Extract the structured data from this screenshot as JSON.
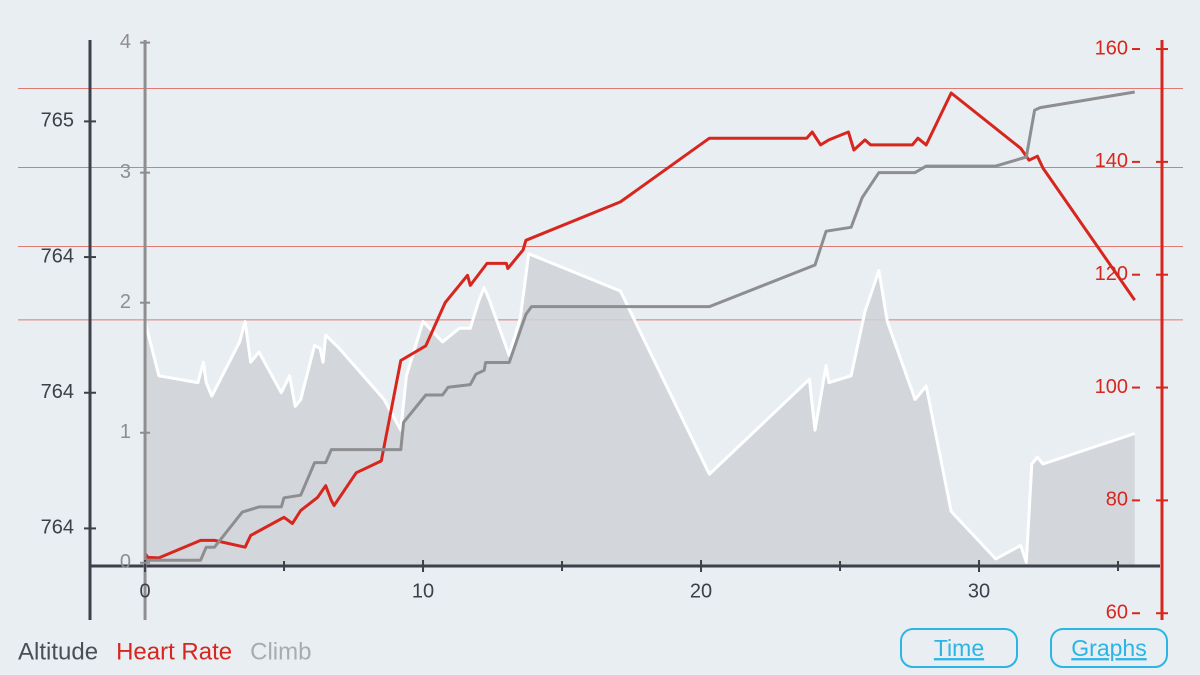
{
  "chart_data": {
    "type": "line",
    "xlim": [
      -1.98,
      36.51
    ],
    "xticks": [
      0,
      10,
      20,
      30
    ],
    "x_minor_ticks": [
      5,
      15,
      25,
      35
    ],
    "ylim": [
      763.33,
      765.04
    ],
    "yticks": [
      {
        "value": 764.8,
        "label": "765"
      },
      {
        "value": 764.4,
        "label": "764"
      },
      {
        "value": 764.0,
        "label": "764"
      },
      {
        "value": 763.6,
        "label": "764"
      }
    ],
    "y3lim": [
      -0.44,
      4.02
    ],
    "y3ticks": [
      0,
      1,
      2,
      3,
      4
    ],
    "y2lim": [
      58.8,
      161.6
    ],
    "y2ticks": [
      60,
      80,
      100,
      120,
      140,
      160
    ],
    "hr_zones": [
      153,
      139,
      125,
      112
    ],
    "zone_color": "#e07a74",
    "series": [
      {
        "name": "Altitude",
        "axis": "y",
        "color": "#ffffff",
        "legend_color": "#4a4f57",
        "area": true,
        "area_color": "#cfd2d8",
        "x": [
          0,
          0.5,
          1.9,
          2.1,
          2.2,
          2.4,
          3.4,
          3.6,
          3.8,
          4.1,
          4.9,
          5.2,
          5.4,
          5.6,
          6.1,
          6.3,
          6.4,
          6.5,
          7.0,
          8.6,
          9.2,
          9.4,
          10.0,
          10.7,
          11.3,
          11.7,
          12.0,
          12.2,
          12.4,
          13.1,
          13.5,
          13.8,
          17.1,
          20.3,
          23.9,
          24.1,
          24.5,
          24.6,
          25.4,
          25.9,
          26.4,
          26.7,
          27.7,
          28.1,
          29.0,
          30.6,
          31.5,
          31.7,
          31.9,
          32.1,
          32.3,
          35.6
        ],
        "values": [
          764.21,
          764.05,
          764.03,
          764.09,
          764.03,
          763.99,
          764.15,
          764.21,
          764.09,
          764.12,
          764.0,
          764.05,
          763.96,
          763.98,
          764.14,
          764.13,
          764.09,
          764.17,
          764.13,
          763.98,
          763.89,
          764.05,
          764.21,
          764.15,
          764.19,
          764.19,
          764.27,
          764.31,
          764.27,
          764.11,
          764.22,
          764.41,
          764.3,
          763.76,
          764.04,
          763.89,
          764.08,
          764.03,
          764.05,
          764.24,
          764.36,
          764.21,
          763.98,
          764.02,
          763.65,
          763.51,
          763.55,
          763.5,
          763.79,
          763.81,
          763.79,
          763.88
        ]
      },
      {
        "name": "Heart Rate",
        "axis": "y2",
        "color": "#d7261e",
        "legend_color": "#d7261e",
        "x": [
          0,
          0.1,
          0.5,
          2.0,
          2.5,
          3.6,
          3.8,
          5.0,
          5.3,
          5.6,
          6.2,
          6.5,
          6.7,
          6.8,
          7.6,
          7.9,
          8.5,
          9.2,
          10.1,
          10.8,
          11.6,
          11.7,
          12.3,
          13.0,
          13.05,
          13.6,
          13.7,
          17.1,
          20.3,
          23.8,
          24.0,
          24.3,
          24.6,
          25.3,
          25.5,
          25.9,
          26.1,
          27.6,
          27.8,
          28.1,
          29.0,
          31.5,
          31.8,
          32.1,
          32.3,
          35.6
        ],
        "values": [
          70.6,
          69.9,
          69.8,
          72.9,
          72.9,
          71.7,
          73.8,
          77.0,
          75.9,
          78.2,
          80.5,
          82.6,
          80.0,
          79.1,
          84.9,
          85.6,
          87.0,
          104.8,
          107.4,
          115.1,
          119.9,
          118.1,
          122.0,
          122.0,
          121.1,
          124.4,
          126.1,
          132.9,
          144.2,
          144.2,
          145.3,
          143.0,
          143.9,
          145.3,
          142.1,
          143.9,
          143.0,
          143.0,
          144.2,
          143.0,
          152.2,
          142.4,
          140.3,
          141.0,
          138.9,
          115.5
        ]
      },
      {
        "name": "Climb",
        "axis": "y3",
        "color": "#8e8e90",
        "legend_color": "#a9abaf",
        "x": [
          0,
          2.0,
          2.2,
          2.5,
          3.5,
          4.1,
          4.9,
          5.0,
          5.6,
          6.1,
          6.5,
          6.7,
          9.2,
          9.3,
          10.1,
          10.7,
          10.9,
          11.7,
          11.9,
          12.2,
          12.25,
          13.1,
          13.7,
          13.9,
          20.3,
          24.1,
          24.5,
          25.4,
          25.8,
          26.4,
          27.7,
          28.1,
          30.6,
          31.7,
          32.0,
          32.2,
          35.6
        ],
        "values": [
          0.02,
          0.02,
          0.12,
          0.12,
          0.39,
          0.43,
          0.43,
          0.5,
          0.52,
          0.77,
          0.77,
          0.87,
          0.87,
          1.08,
          1.29,
          1.29,
          1.35,
          1.37,
          1.45,
          1.48,
          1.54,
          1.54,
          1.91,
          1.97,
          1.97,
          2.29,
          2.55,
          2.58,
          2.81,
          3.0,
          3.0,
          3.05,
          3.05,
          3.12,
          3.48,
          3.5,
          3.62
        ]
      }
    ],
    "buttons": [
      "Time",
      "Graphs"
    ]
  }
}
